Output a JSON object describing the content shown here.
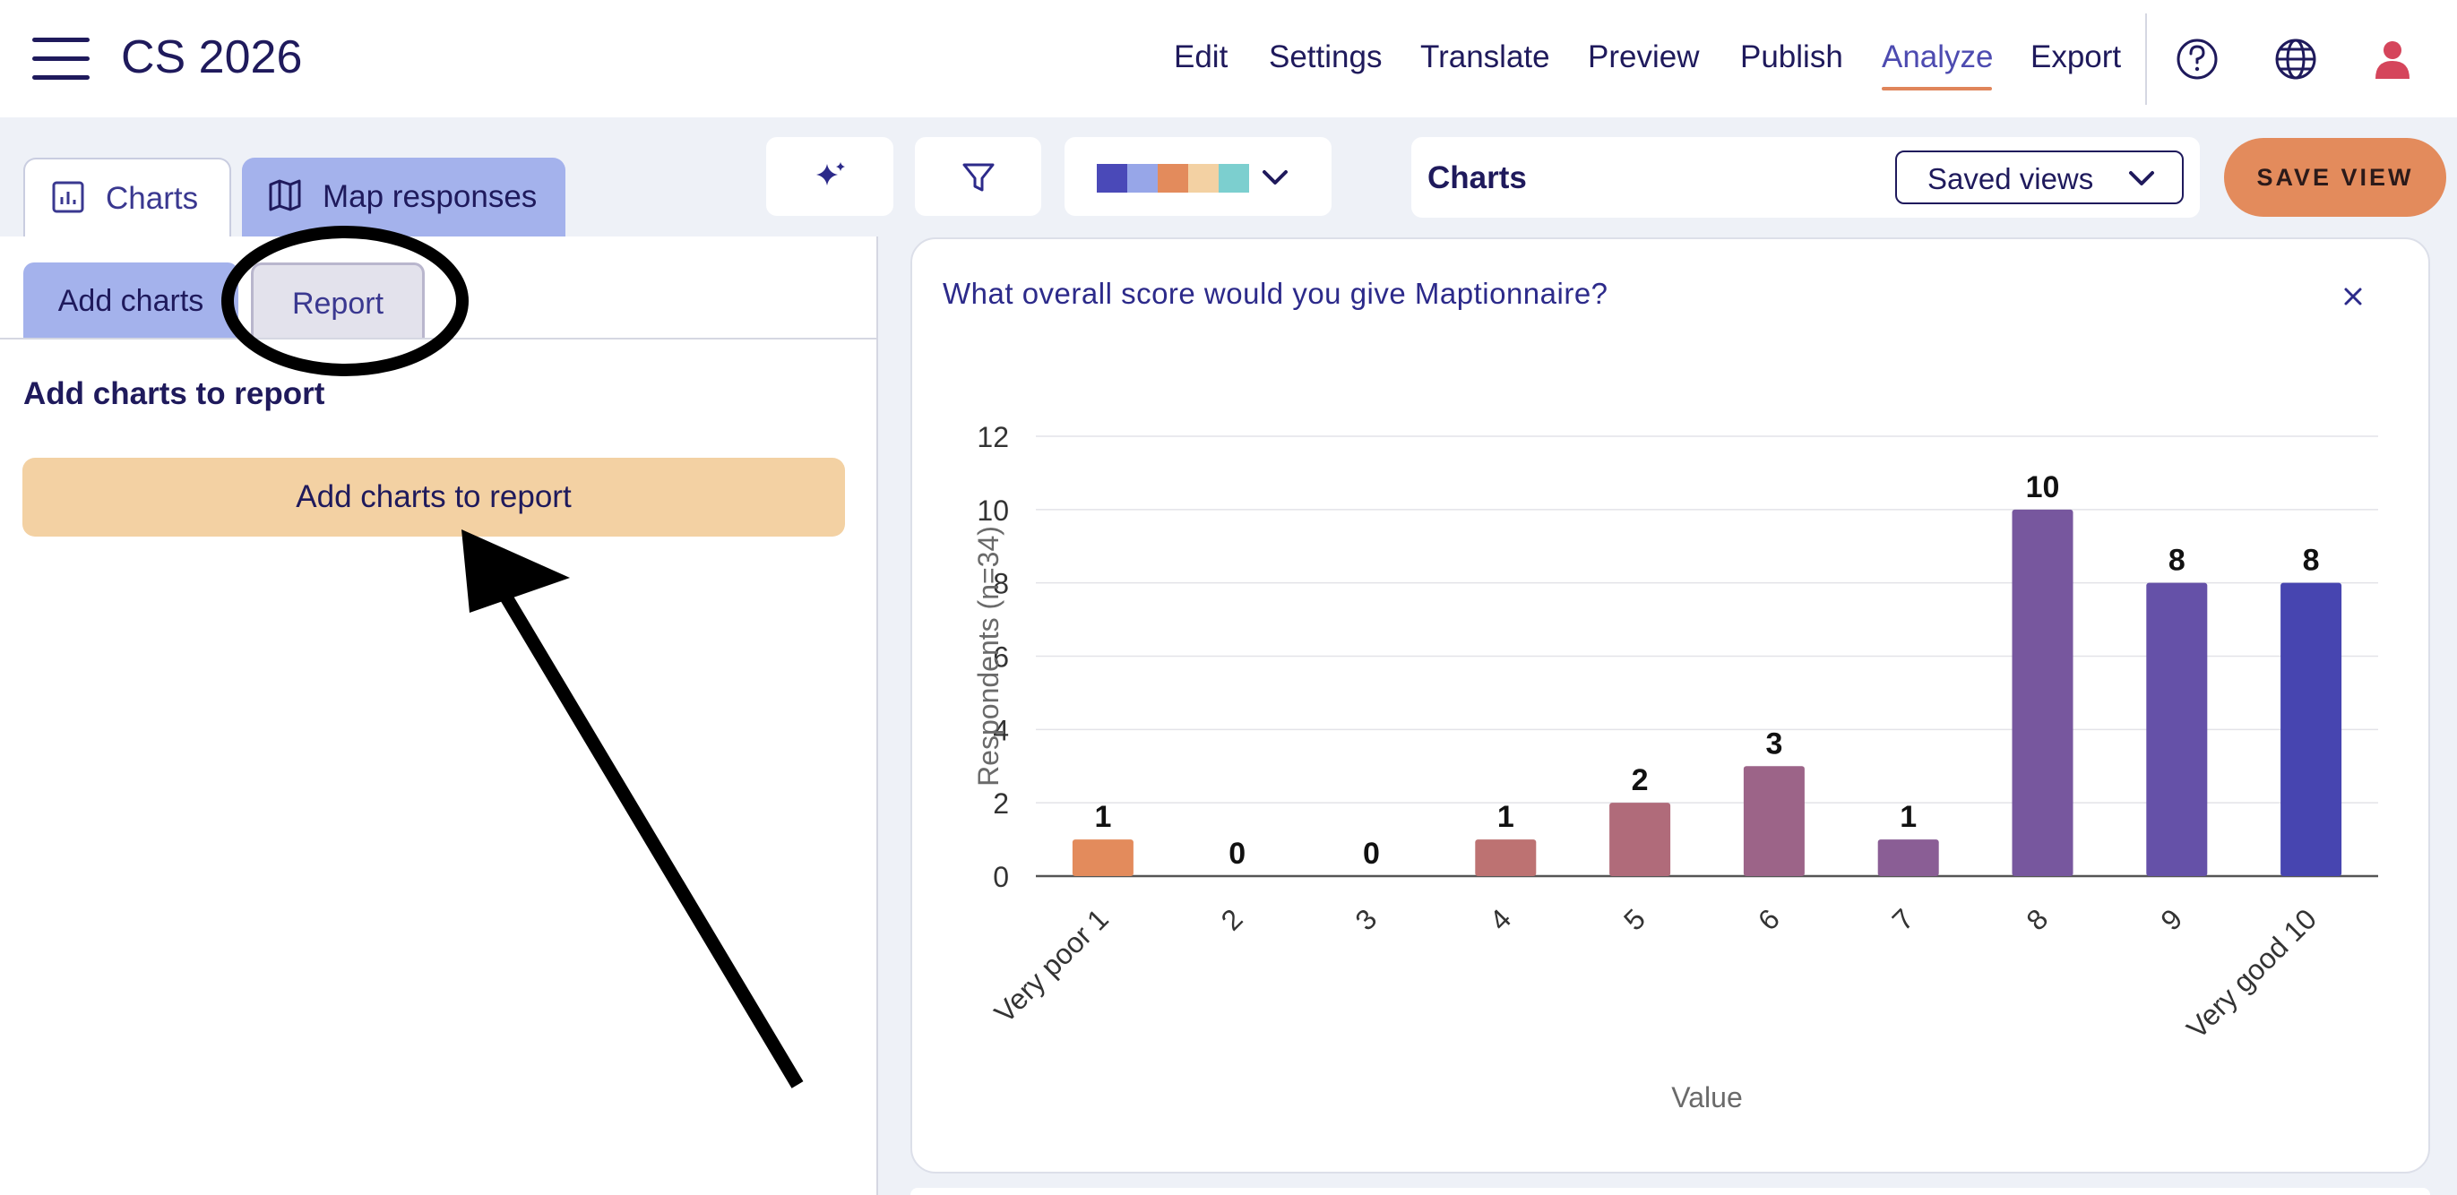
{
  "header": {
    "app_title": "CS 2026",
    "nav": [
      {
        "label": "Edit"
      },
      {
        "label": "Settings"
      },
      {
        "label": "Translate"
      },
      {
        "label": "Preview"
      },
      {
        "label": "Publish"
      },
      {
        "label": "Analyze",
        "active": true
      },
      {
        "label": "Export"
      }
    ],
    "icons": [
      "help-icon",
      "globe-icon",
      "user-icon"
    ]
  },
  "tabs": {
    "charts": "Charts",
    "map_responses": "Map responses"
  },
  "left_panel": {
    "sub_tabs": {
      "add_charts": "Add charts",
      "report": "Report"
    },
    "section_title": "Add charts to report",
    "add_button": "Add charts to report"
  },
  "toolbar": {
    "palette": [
      "#4a49b8",
      "#97a6e8",
      "#e38b5c",
      "#f3d1a3",
      "#7ccfcf"
    ],
    "charts_label": "Charts",
    "saved_views": "Saved views",
    "save_view": "SAVE VIEW"
  },
  "chart_data": {
    "type": "bar",
    "title": "What overall score would you give Maptionnaire?",
    "xlabel": "Value",
    "ylabel": "Respondents (n=34)",
    "categories": [
      "Very poor 1",
      "2",
      "3",
      "4",
      "5",
      "6",
      "7",
      "8",
      "9",
      "Very good 10"
    ],
    "values": [
      1,
      0,
      0,
      1,
      2,
      3,
      1,
      10,
      8,
      8
    ],
    "colors": [
      "#e38b5c",
      "#d4826a",
      "#c87a6e",
      "#bd7272",
      "#b06b7a",
      "#9c6488",
      "#8a5e95",
      "#77579e",
      "#6551a8",
      "#4745b0"
    ],
    "ylim": [
      0,
      12
    ],
    "yticks": [
      0,
      2,
      4,
      6,
      8,
      10,
      12
    ],
    "grid": true,
    "legend": "none"
  }
}
